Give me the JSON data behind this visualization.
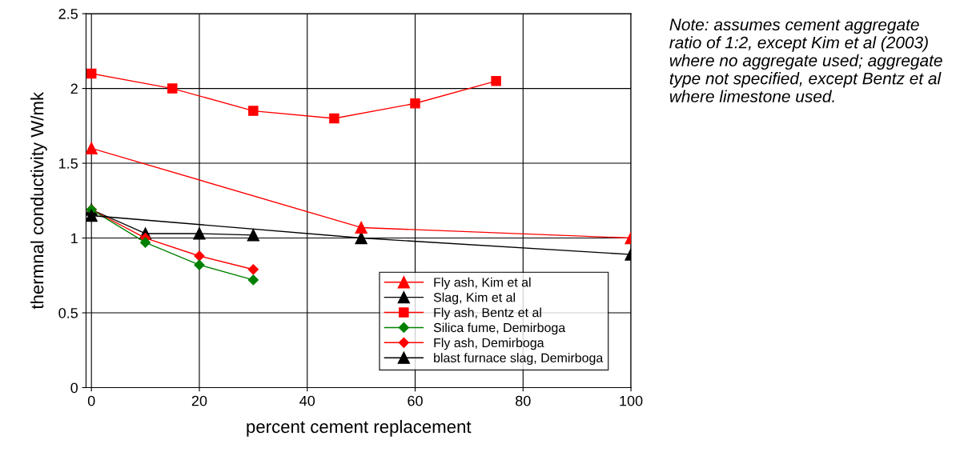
{
  "chart_data": {
    "type": "line",
    "xlabel": "percent cement replacement",
    "ylabel": "thermnal conductivity W/mk",
    "xlim": [
      -1,
      100
    ],
    "ylim": [
      0,
      2.5
    ],
    "xticks": [
      0,
      20,
      40,
      60,
      80,
      100
    ],
    "yticks": [
      0,
      0.5,
      1,
      1.5,
      2,
      2.5
    ],
    "grid": true,
    "legend": "lower right",
    "annotations": [
      "Note: assumes cement aggregate ratio of 1:2, except Kim et al (2003) where no aggregate used; aggregate type not specified, except Bentz et al where limestone used."
    ],
    "series": [
      {
        "name": "Fly ash, Kim et al",
        "color": "#ff0000",
        "marker": "triangle",
        "x": [
          0,
          50,
          100
        ],
        "values": [
          1.6,
          1.07,
          1.0
        ]
      },
      {
        "name": "Slag, Kim et al",
        "color": "#000000",
        "marker": "triangle",
        "x": [
          0,
          50,
          100
        ],
        "values": [
          1.15,
          1.0,
          0.89
        ]
      },
      {
        "name": "Fly ash, Bentz et al",
        "color": "#ff0000",
        "marker": "square",
        "x": [
          0,
          15,
          30,
          45,
          60,
          75
        ],
        "values": [
          2.1,
          2.0,
          1.85,
          1.8,
          1.9,
          2.05
        ]
      },
      {
        "name": "Silica fume, Demirboga",
        "color": "#008000",
        "marker": "diamond",
        "x": [
          0,
          10,
          20,
          30
        ],
        "values": [
          1.19,
          0.97,
          0.82,
          0.72
        ]
      },
      {
        "name": "Fly ash, Demirboga",
        "color": "#ff0000",
        "marker": "diamond",
        "x": [
          0,
          10,
          20,
          30
        ],
        "values": [
          1.19,
          1.0,
          0.88,
          0.79
        ]
      },
      {
        "name": "blast furnace slag, Demirboga",
        "color": "#000000",
        "marker": "triangle",
        "x": [
          0,
          10,
          20,
          30
        ],
        "values": [
          1.19,
          1.03,
          1.03,
          1.02
        ]
      }
    ]
  }
}
